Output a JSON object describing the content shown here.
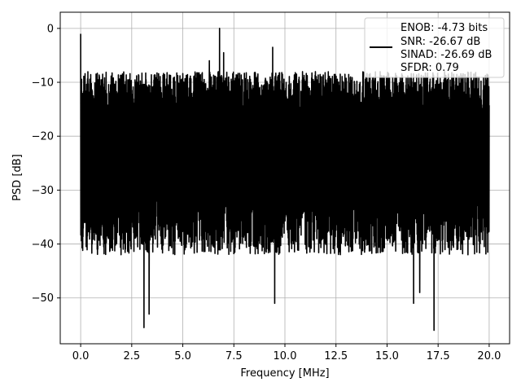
{
  "chart_data": {
    "type": "line",
    "xlabel": "Frequency [MHz]",
    "ylabel": "PSD [dB]",
    "xlim": [
      -1,
      21
    ],
    "ylim": [
      -58.5,
      3
    ],
    "xticks": [
      "0.0",
      "2.5",
      "5.0",
      "7.5",
      "10.0",
      "12.5",
      "15.0",
      "17.5",
      "20.0"
    ],
    "xtick_values": [
      0,
      2.5,
      5,
      7.5,
      10,
      12.5,
      15,
      17.5,
      20
    ],
    "yticks": [
      "0",
      "−10",
      "−20",
      "−30",
      "−40",
      "−50"
    ],
    "ytick_values": [
      0,
      -10,
      -20,
      -30,
      -40,
      -50
    ],
    "grid": true,
    "legend_position": "top-right",
    "legend_lines": [
      "ENOB: -4.73 bits",
      "SNR: -26.67 dB",
      "SINAD: -26.69 dB",
      "SFDR: 0.79"
    ],
    "series_color": "#000000",
    "series": [
      {
        "x_range": [
          0,
          20
        ],
        "peak_points": [
          [
            0,
            -1
          ],
          [
            0.05,
            -34
          ],
          [
            6.8,
            0
          ],
          [
            9.4,
            -3.5
          ],
          [
            7.0,
            -4.5
          ],
          [
            6.3,
            -6
          ]
        ],
        "low_points": [
          [
            3.1,
            -55.5
          ],
          [
            3.35,
            -53
          ],
          [
            9.5,
            -51
          ],
          [
            16.3,
            -51
          ],
          [
            17.3,
            -56
          ],
          [
            16.6,
            -49
          ]
        ],
        "band_upper_approx": -11,
        "band_lower_approx": -38
      }
    ]
  }
}
